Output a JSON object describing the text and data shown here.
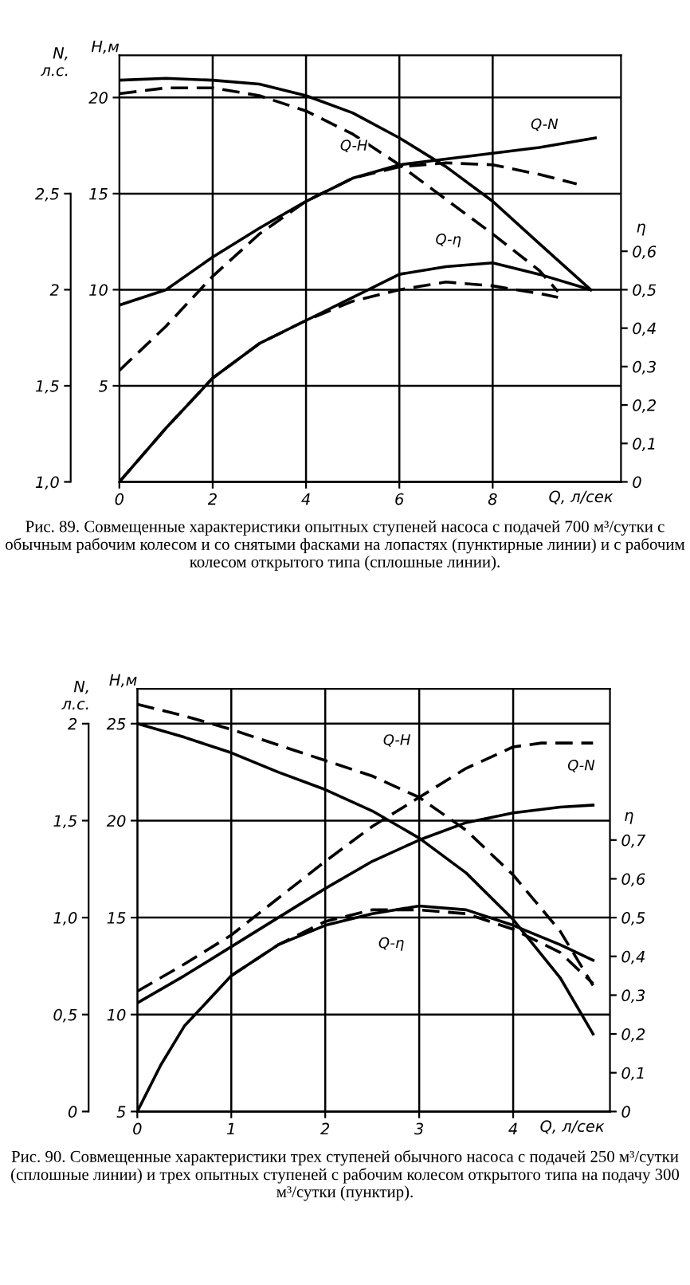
{
  "chart_data": [
    {
      "type": "line",
      "xlabel": "Q, л/сек",
      "ylabel": "H,м",
      "y2label": "η",
      "y3label": "N,\nл.с.",
      "xlim": [
        0,
        10.75
      ],
      "xticks": [
        0,
        2,
        4,
        6,
        8
      ],
      "ylim": [
        0,
        22.2
      ],
      "yticks": [
        5,
        10,
        15,
        20
      ],
      "y2lim": [
        0,
        1.11
      ],
      "y2ticks": [
        {
          "value": 0,
          "label": "0"
        },
        {
          "value": 0.1,
          "label": "0,1"
        },
        {
          "value": 0.2,
          "label": "0,2"
        },
        {
          "value": 0.3,
          "label": "0,3"
        },
        {
          "value": 0.4,
          "label": "0,4"
        },
        {
          "value": 0.5,
          "label": "0,5"
        },
        {
          "value": 0.6,
          "label": "0,6"
        }
      ],
      "y3lim": [
        1.0,
        3.22
      ],
      "y3ticks": [
        {
          "value": 1.0,
          "label": "1,0"
        },
        {
          "value": 1.5,
          "label": "1,5"
        },
        {
          "value": 2,
          "label": "2"
        },
        {
          "value": 2.5,
          "label": "2,5"
        }
      ],
      "grid": true,
      "series": [
        {
          "color": "#000000",
          "line_style": "solid",
          "x": [
            0,
            1,
            2,
            3,
            4,
            5,
            6,
            7,
            8,
            9,
            10.1
          ],
          "values": [
            20.9,
            21.0,
            20.9,
            20.7,
            20.1,
            19.2,
            17.9,
            16.4,
            14.6,
            12.4,
            10.0
          ]
        },
        {
          "color": "#000000",
          "line_style": "dashed",
          "x": [
            0,
            1,
            2,
            3,
            4,
            5,
            6,
            7,
            8,
            9,
            9.4
          ],
          "values": [
            20.2,
            20.5,
            20.5,
            20.1,
            19.3,
            18.1,
            16.5,
            14.7,
            12.9,
            11.0,
            9.9
          ]
        },
        {
          "axis": "y3",
          "color": "#000000",
          "line_style": "solid",
          "x": [
            0,
            1,
            2,
            3,
            4,
            5,
            6,
            7,
            8,
            9,
            10.2
          ],
          "values": [
            1.92,
            2.0,
            2.17,
            2.32,
            2.46,
            2.58,
            2.65,
            2.68,
            2.71,
            2.74,
            2.79
          ]
        },
        {
          "axis": "y3",
          "color": "#000000",
          "line_style": "dashed",
          "x": [
            0,
            1,
            2,
            3,
            4,
            5,
            6,
            7,
            8,
            9,
            9.8
          ],
          "values": [
            1.58,
            1.81,
            2.07,
            2.29,
            2.46,
            2.58,
            2.64,
            2.66,
            2.65,
            2.6,
            2.55
          ]
        },
        {
          "axis": "y2",
          "color": "#000000",
          "line_style": "solid",
          "x": [
            0,
            1,
            2,
            3,
            4,
            5,
            6,
            7,
            8,
            9,
            10.1
          ],
          "values": [
            0,
            0.14,
            0.27,
            0.36,
            0.42,
            0.48,
            0.54,
            0.56,
            0.57,
            0.54,
            0.5
          ]
        },
        {
          "axis": "y2",
          "color": "#000000",
          "line_style": "dashed",
          "x": [
            0,
            1,
            2,
            3,
            4,
            5,
            6,
            7,
            8,
            9,
            9.4
          ],
          "values": [
            0,
            0.14,
            0.27,
            0.36,
            0.42,
            0.47,
            0.5,
            0.52,
            0.51,
            0.49,
            0.48
          ]
        }
      ],
      "annotations": [
        "Q-H",
        "Q-N",
        "Q-η",
        "Рис. 89. Совмещенные характеристики опытных ступеней насоса с подачей 700 м³/сутки с обычным рабочим колесом и со снятыми фасками на лопастях (пунктирные линии) и с рабочим колесом открытого типа (сплошные линии)."
      ]
    },
    {
      "type": "line",
      "xlabel": "Q, л/сек",
      "ylabel": "H,м",
      "y2label": "η",
      "y3label": "N,\nл.с.",
      "xlim": [
        0,
        5.03
      ],
      "xticks": [
        0,
        1,
        2,
        3,
        4
      ],
      "ylim": [
        5,
        26.8
      ],
      "yticks": [
        5,
        10,
        15,
        20,
        25
      ],
      "y2lim": [
        0,
        1.09
      ],
      "y2ticks": [
        {
          "value": 0,
          "label": "0"
        },
        {
          "value": 0.1,
          "label": "0,1"
        },
        {
          "value": 0.2,
          "label": "0,2"
        },
        {
          "value": 0.3,
          "label": "0,3"
        },
        {
          "value": 0.4,
          "label": "0,4"
        },
        {
          "value": 0.5,
          "label": "0,5"
        },
        {
          "value": 0.6,
          "label": "0,6"
        },
        {
          "value": 0.7,
          "label": "0,7"
        }
      ],
      "y3lim": [
        0,
        2.18
      ],
      "y3ticks": [
        {
          "value": 0,
          "label": "0"
        },
        {
          "value": 0.5,
          "label": "0,5"
        },
        {
          "value": 1.0,
          "label": "1,0"
        },
        {
          "value": 1.5,
          "label": "1,5"
        },
        {
          "value": 2,
          "label": "2"
        }
      ],
      "grid": true,
      "series": [
        {
          "color": "#000000",
          "line_style": "solid",
          "x": [
            0,
            0.5,
            1,
            1.5,
            2,
            2.5,
            3,
            3.5,
            4,
            4.5,
            4.85
          ],
          "values": [
            25.0,
            24.3,
            23.5,
            22.5,
            21.6,
            20.5,
            19.1,
            17.3,
            14.9,
            11.9,
            9.0
          ]
        },
        {
          "color": "#000000",
          "line_style": "dashed",
          "x": [
            0,
            0.5,
            1,
            1.5,
            2,
            2.5,
            3,
            3.5,
            4,
            4.5,
            4.85
          ],
          "values": [
            26.0,
            25.4,
            24.7,
            23.9,
            23.1,
            22.3,
            21.2,
            19.5,
            17.2,
            14.3,
            11.5
          ]
        },
        {
          "axis": "y3",
          "color": "#000000",
          "line_style": "solid",
          "x": [
            0,
            0.5,
            1,
            1.5,
            2,
            2.5,
            3,
            3.5,
            4,
            4.5,
            4.85
          ],
          "values": [
            0.56,
            0.7,
            0.85,
            1.0,
            1.15,
            1.29,
            1.4,
            1.49,
            1.54,
            1.57,
            1.58
          ]
        },
        {
          "axis": "y3",
          "color": "#000000",
          "line_style": "dashed",
          "x": [
            0,
            0.5,
            1,
            1.5,
            2,
            2.5,
            3,
            3.5,
            4,
            4.3,
            4.85
          ],
          "values": [
            0.62,
            0.76,
            0.91,
            1.1,
            1.29,
            1.47,
            1.62,
            1.77,
            1.88,
            1.9,
            1.9
          ]
        },
        {
          "axis": "y2",
          "color": "#000000",
          "line_style": "solid",
          "x": [
            0,
            0.25,
            0.5,
            1,
            1.5,
            2,
            2.5,
            3,
            3.5,
            4,
            4.5,
            4.85
          ],
          "values": [
            0,
            0.12,
            0.22,
            0.35,
            0.43,
            0.48,
            0.51,
            0.53,
            0.52,
            0.48,
            0.43,
            0.39
          ]
        },
        {
          "axis": "y2",
          "color": "#000000",
          "line_style": "dashed",
          "x": [
            1,
            1.5,
            2,
            2.5,
            3,
            3.5,
            4,
            4.5,
            4.85
          ],
          "values": [
            0.35,
            0.43,
            0.49,
            0.52,
            0.52,
            0.51,
            0.47,
            0.41,
            0.33
          ]
        }
      ],
      "annotations": [
        "Q-H",
        "Q-N",
        "Q-η",
        "Рис. 90. Совмещенные характеристики трех ступеней обычного насоса с подачей 250 м³/сутки (сплошные линии) и трех опытных ступеней с рабочим колесом открытого типа на подачу 300 м³/сутки (пунктир)."
      ]
    }
  ]
}
